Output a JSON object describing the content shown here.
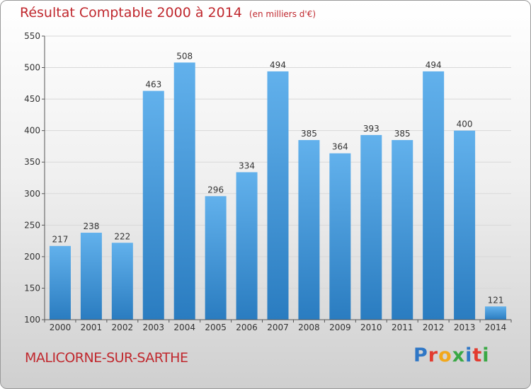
{
  "title": "Résultat Comptable 2000 à 2014",
  "subtitle": "(en milliers d'€)",
  "location": "MALICORNE-SUR-SARTHE",
  "logo": {
    "text": "Proxiti",
    "colors": [
      "#2f77c6",
      "#e23b2f",
      "#f2a81c",
      "#3aa845",
      "#2f77c6",
      "#e23b2f",
      "#3aa845"
    ]
  },
  "colors": {
    "title": "#c0282e",
    "bar_light": "#62b1ec",
    "bar_dark": "#2a7cc0",
    "grid": "#d9d9d9"
  },
  "chart_data": {
    "type": "bar",
    "categories": [
      "2000",
      "2001",
      "2002",
      "2003",
      "2004",
      "2005",
      "2006",
      "2007",
      "2008",
      "2009",
      "2010",
      "2011",
      "2012",
      "2013",
      "2014"
    ],
    "values": [
      217,
      238,
      222,
      463,
      508,
      296,
      334,
      494,
      385,
      364,
      393,
      385,
      494,
      400,
      121
    ],
    "ylim": [
      100,
      550
    ],
    "yticks": [
      100,
      150,
      200,
      250,
      300,
      350,
      400,
      450,
      500,
      550
    ],
    "grid": true,
    "title": "Résultat Comptable 2000 à 2014",
    "xlabel": "",
    "ylabel": ""
  }
}
